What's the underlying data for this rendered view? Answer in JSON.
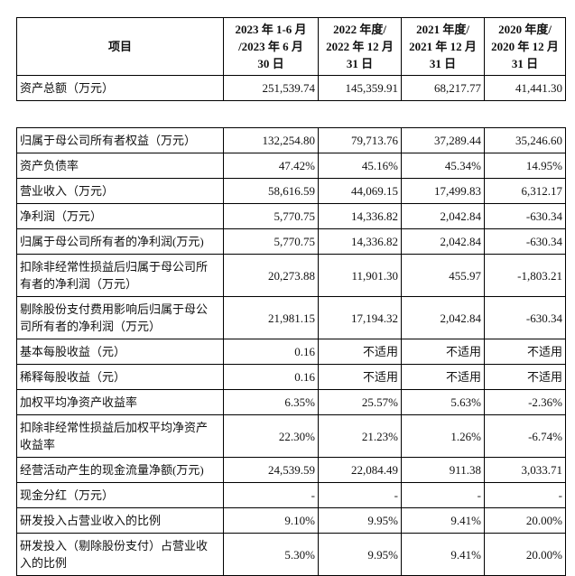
{
  "page": {
    "background_color": "#ffffff",
    "text_color": "#111111",
    "border_color": "#000000"
  },
  "summary_table": {
    "columns": {
      "item": "项目",
      "periods": [
        "2023 年 1-6 月\n/2023 年 6 月\n30 日",
        "2022 年度/\n2022 年 12 月\n31 日",
        "2021 年度/\n2021 年 12 月\n31 日",
        "2020 年度/\n2020 年 12 月\n31 日"
      ]
    },
    "rows": [
      {
        "label": "资产总额（万元）",
        "values": [
          "251,539.74",
          "145,359.91",
          "68,217.77",
          "41,441.30"
        ]
      }
    ]
  },
  "detail_table": {
    "rows": [
      {
        "label": "归属于母公司所有者权益（万元）",
        "values": [
          "132,254.80",
          "79,713.76",
          "37,289.44",
          "35,246.60"
        ]
      },
      {
        "label": "资产负债率",
        "values": [
          "47.42%",
          "45.16%",
          "45.34%",
          "14.95%"
        ]
      },
      {
        "label": "营业收入（万元）",
        "values": [
          "58,616.59",
          "44,069.15",
          "17,499.83",
          "6,312.17"
        ]
      },
      {
        "label": "净利润（万元）",
        "values": [
          "5,770.75",
          "14,336.82",
          "2,042.84",
          "-630.34"
        ]
      },
      {
        "label": "归属于母公司所有者的净利润(万元)",
        "values": [
          "5,770.75",
          "14,336.82",
          "2,042.84",
          "-630.34"
        ]
      },
      {
        "label": "扣除非经常性损益后归属于母公司所有者的净利润（万元）",
        "values": [
          "20,273.88",
          "11,901.30",
          "455.97",
          "-1,803.21"
        ]
      },
      {
        "label": "剔除股份支付费用影响后归属于母公司所有者的净利润（万元）",
        "values": [
          "21,981.15",
          "17,194.32",
          "2,042.84",
          "-630.34"
        ]
      },
      {
        "label": "基本每股收益（元）",
        "values": [
          "0.16",
          "不适用",
          "不适用",
          "不适用"
        ]
      },
      {
        "label": "稀释每股收益（元）",
        "values": [
          "0.16",
          "不适用",
          "不适用",
          "不适用"
        ]
      },
      {
        "label": "加权平均净资产收益率",
        "values": [
          "6.35%",
          "25.57%",
          "5.63%",
          "-2.36%"
        ]
      },
      {
        "label": "扣除非经常性损益后加权平均净资产收益率",
        "values": [
          "22.30%",
          "21.23%",
          "1.26%",
          "-6.74%"
        ]
      },
      {
        "label": "经营活动产生的现金流量净额(万元)",
        "values": [
          "24,539.59",
          "22,084.49",
          "911.38",
          "3,033.71"
        ]
      },
      {
        "label": "现金分红（万元）",
        "values": [
          "-",
          "-",
          "-",
          "-"
        ]
      },
      {
        "label": "研发投入占营业收入的比例",
        "values": [
          "9.10%",
          "9.95%",
          "9.41%",
          "20.00%"
        ]
      },
      {
        "label": "研发投入（剔除股份支付）占营业收入的比例",
        "values": [
          "5.30%",
          "9.95%",
          "9.41%",
          "20.00%"
        ]
      }
    ]
  }
}
